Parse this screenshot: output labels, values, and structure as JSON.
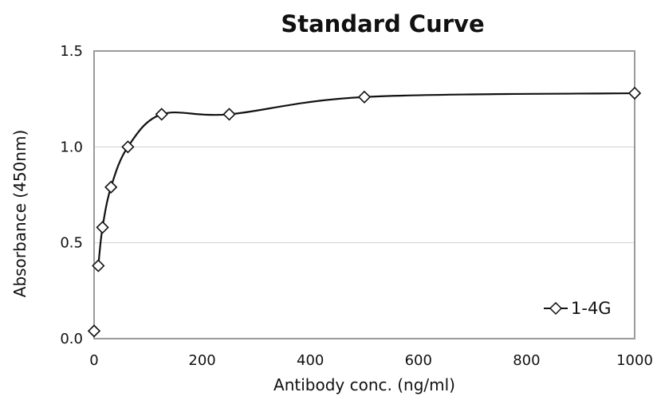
{
  "chart_data": {
    "type": "scatter",
    "title": "Standard Curve",
    "xlabel": "Antibody conc. (ng/ml)",
    "ylabel": "Absorbance (450nm)",
    "xlim": [
      0,
      1000
    ],
    "ylim": [
      0.0,
      1.5
    ],
    "x_ticks": [
      "0",
      "200",
      "400",
      "600",
      "800",
      "1000"
    ],
    "y_ticks": [
      "0.0",
      "0.5",
      "1.0",
      "1.5"
    ],
    "grid": "horizontal",
    "smoothed_line": true,
    "legend_position": "bottom-right",
    "series": [
      {
        "name": "1-4G",
        "marker": "diamond",
        "color": "#111111",
        "x": [
          0,
          7.8,
          15.6,
          31.25,
          62.5,
          125,
          250,
          500,
          1000
        ],
        "y": [
          0.04,
          0.38,
          0.58,
          0.79,
          1.0,
          1.17,
          1.17,
          1.26,
          1.28
        ]
      }
    ]
  }
}
